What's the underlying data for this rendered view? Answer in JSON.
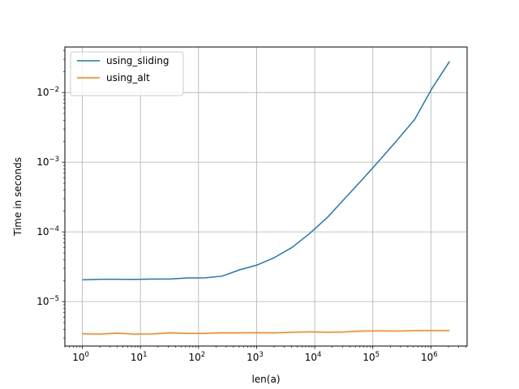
{
  "chart_data": {
    "type": "line",
    "xlabel": "len(a)",
    "ylabel": "Time in seconds",
    "xscale": "log",
    "yscale": "log",
    "xlim": [
      0.5,
      4200000
    ],
    "ylim": [
      2.3e-06,
      0.045
    ],
    "grid": true,
    "legend_position": "top-left",
    "x_ticks": [
      {
        "value": 1,
        "base": "10",
        "exp": "0"
      },
      {
        "value": 10,
        "base": "10",
        "exp": "1"
      },
      {
        "value": 100,
        "base": "10",
        "exp": "2"
      },
      {
        "value": 1000,
        "base": "10",
        "exp": "3"
      },
      {
        "value": 10000,
        "base": "10",
        "exp": "4"
      },
      {
        "value": 100000,
        "base": "10",
        "exp": "5"
      },
      {
        "value": 1000000,
        "base": "10",
        "exp": "6"
      }
    ],
    "y_ticks": [
      {
        "value": 1e-05,
        "base": "10",
        "exp": "−5"
      },
      {
        "value": 0.0001,
        "base": "10",
        "exp": "−4"
      },
      {
        "value": 0.001,
        "base": "10",
        "exp": "−3"
      },
      {
        "value": 0.01,
        "base": "10",
        "exp": "−2"
      }
    ],
    "x": [
      1,
      2,
      4,
      8,
      16,
      32,
      64,
      128,
      256,
      512,
      1024,
      2048,
      4096,
      8192,
      16384,
      32768,
      65536,
      131072,
      262144,
      524288,
      1048576,
      2097152
    ],
    "series": [
      {
        "name": "using_sliding",
        "color": "#1f77b4",
        "values": [
          2.05e-05,
          2.09e-05,
          2.09e-05,
          2.08e-05,
          2.1e-05,
          2.11e-05,
          2.18e-05,
          2.19e-05,
          2.32e-05,
          2.86e-05,
          3.35e-05,
          4.3e-05,
          6e-05,
          9.5e-05,
          0.00016,
          0.0003,
          0.00056,
          0.00107,
          0.00207,
          0.0041,
          0.0115,
          0.028
        ]
      },
      {
        "name": "using_alt",
        "color": "#ff7f0e",
        "values": [
          3.45e-06,
          3.42e-06,
          3.52e-06,
          3.42e-06,
          3.44e-06,
          3.55e-06,
          3.5e-06,
          3.5e-06,
          3.55e-06,
          3.55e-06,
          3.58e-06,
          3.55e-06,
          3.62e-06,
          3.68e-06,
          3.62e-06,
          3.66e-06,
          3.78e-06,
          3.8e-06,
          3.78e-06,
          3.82e-06,
          3.84e-06,
          3.84e-06
        ]
      }
    ]
  }
}
